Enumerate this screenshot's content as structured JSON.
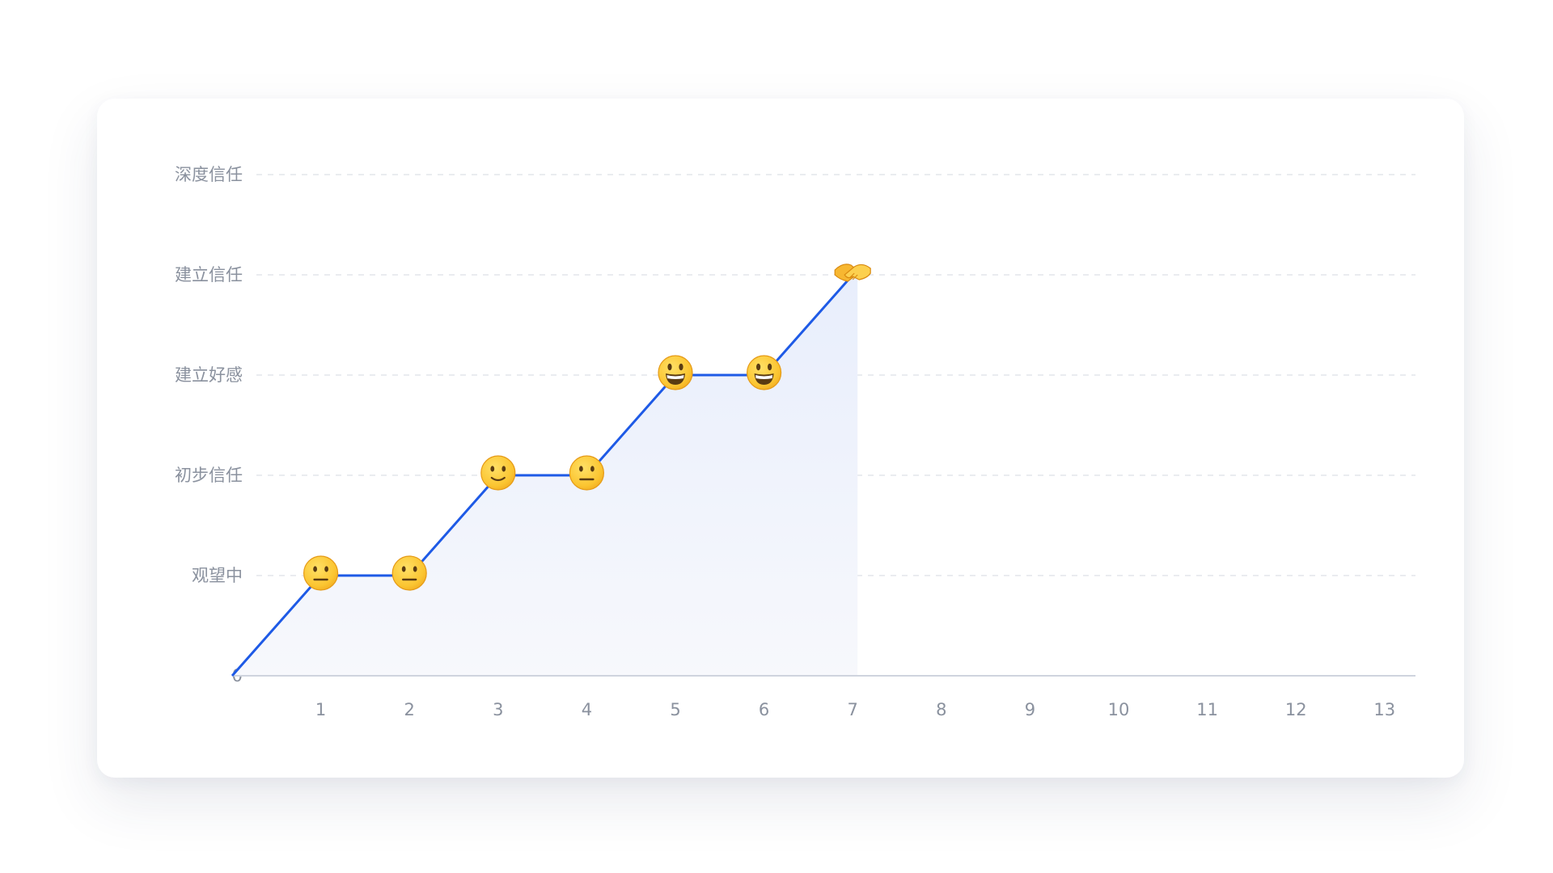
{
  "chart_data": {
    "type": "line",
    "x": [
      0,
      1,
      2,
      3,
      4,
      5,
      6,
      7
    ],
    "x_ticks": [
      "1",
      "2",
      "3",
      "4",
      "5",
      "6",
      "7",
      "8",
      "9",
      "10",
      "11",
      "12",
      "13"
    ],
    "xlim": [
      0,
      13.7
    ],
    "y_levels": [
      "0",
      "观望中",
      "初步信任",
      "建立好感",
      "建立信任",
      "深度信任"
    ],
    "ylim": [
      0,
      5
    ],
    "series": [
      {
        "values": [
          0,
          1,
          1,
          2,
          2,
          3,
          3,
          4
        ],
        "markers": [
          "",
          "neutral-face",
          "neutral-face",
          "slight-smile-face",
          "neutral-face",
          "grinning-face",
          "grinning-face",
          "handshake"
        ]
      }
    ],
    "grid": true,
    "grid_style": "dashed",
    "area_fill": true,
    "colors": {
      "line": "#1e5ae6",
      "area_top": "#e8eefc",
      "area_bottom": "#f7f8fc",
      "face": "#fbc531",
      "face_edge": "#e59a17"
    }
  }
}
